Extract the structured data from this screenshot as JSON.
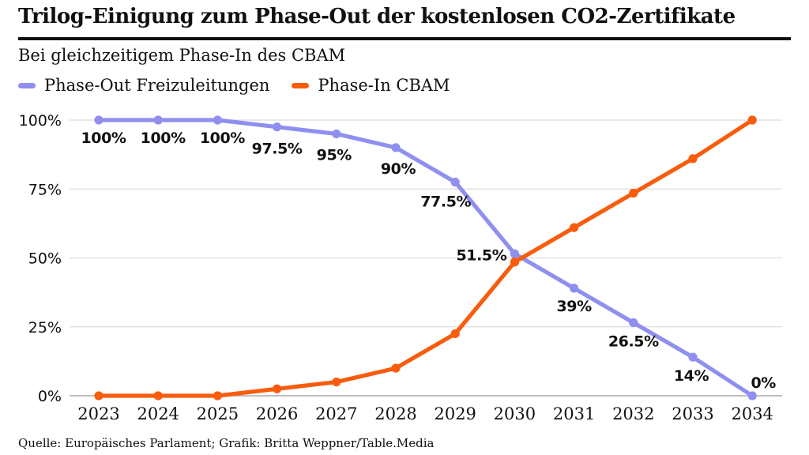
{
  "header": {
    "title": "Trilog-Einigung zum Phase-Out der kostenlosen CO2-Zertifikate",
    "subtitle": "Bei gleichzeitigem Phase-In des CBAM"
  },
  "legend": [
    {
      "label": "Phase-Out Freizuleitungen",
      "color": "#8f8ff0"
    },
    {
      "label": "Phase-In CBAM",
      "color": "#f85c0d"
    }
  ],
  "footer": {
    "source": "Quelle: Europäisches Parlament; Grafik: Britta Weppner/Table.Media"
  },
  "chart_data": {
    "type": "line",
    "x": [
      2023,
      2024,
      2025,
      2026,
      2027,
      2028,
      2029,
      2030,
      2031,
      2032,
      2033,
      2034
    ],
    "series": [
      {
        "name": "Phase-Out Freizuleitungen",
        "color": "#8f8ff0",
        "values": [
          100,
          100,
          100,
          97.5,
          95,
          90,
          77.5,
          51.5,
          39,
          26.5,
          14,
          0
        ],
        "value_labels": [
          "100%",
          "100%",
          "100%",
          "97.5%",
          "95%",
          "90%",
          "77.5%",
          "51.5%",
          "39%",
          "26.5%",
          "14%",
          "0%"
        ]
      },
      {
        "name": "Phase-In CBAM",
        "color": "#f85c0d",
        "values": [
          0,
          0,
          0,
          2.5,
          5,
          10,
          22.5,
          48.5,
          61,
          73.5,
          86,
          100
        ],
        "value_labels": null
      }
    ],
    "yticks": [
      {
        "label": "100%",
        "value": 100
      },
      {
        "label": "75%",
        "value": 75
      },
      {
        "label": "50%",
        "value": 50
      },
      {
        "label": "25%",
        "value": 25
      },
      {
        "label": "0%",
        "value": 0
      }
    ],
    "ylim": [
      0,
      100
    ],
    "grid": "horizontal",
    "grid_color": "#dcdcdc",
    "baseline_color": "#a8a8a8",
    "legend_position": "top-left"
  }
}
